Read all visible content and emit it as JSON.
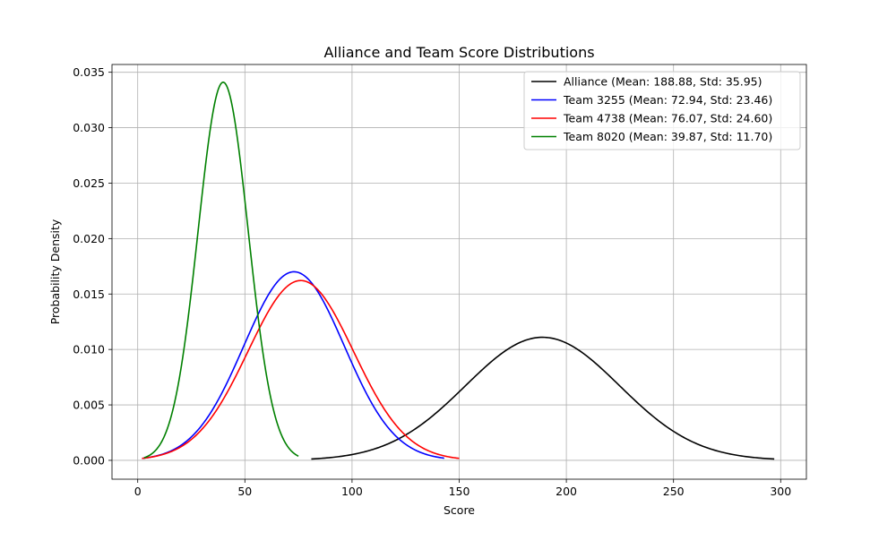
{
  "chart_data": {
    "type": "line",
    "title": "Alliance and Team Score Distributions",
    "xlabel": "Score",
    "ylabel": "Probability Density",
    "xlim": [
      -12,
      312
    ],
    "ylim": [
      -0.0017,
      0.0357
    ],
    "x_ticks": [
      0,
      50,
      100,
      150,
      200,
      250,
      300
    ],
    "x_tick_labels": [
      "0",
      "50",
      "100",
      "150",
      "200",
      "250",
      "300"
    ],
    "y_ticks": [
      0.0,
      0.005,
      0.01,
      0.015,
      0.02,
      0.025,
      0.03,
      0.035
    ],
    "y_tick_labels": [
      "0.000",
      "0.005",
      "0.010",
      "0.015",
      "0.020",
      "0.025",
      "0.030",
      "0.035"
    ],
    "grid": true,
    "legend_position": "upper right",
    "series": [
      {
        "name": "Alliance (Mean: 188.88, Std: 35.95)",
        "color": "#000000",
        "mean": 188.88,
        "std": 35.95,
        "x_range": [
          81,
          297
        ]
      },
      {
        "name": "Team 3255 (Mean: 72.94, Std: 23.46)",
        "color": "#0000ff",
        "mean": 72.94,
        "std": 23.46,
        "x_range": [
          2,
          143
        ]
      },
      {
        "name": "Team 4738 (Mean: 76.07, Std: 24.60)",
        "color": "#ff0000",
        "mean": 76.07,
        "std": 24.6,
        "x_range": [
          2,
          150
        ]
      },
      {
        "name": "Team 8020 (Mean: 39.87, Std: 11.70)",
        "color": "#008000",
        "mean": 39.87,
        "std": 11.7,
        "x_range": [
          3,
          75
        ]
      }
    ]
  }
}
